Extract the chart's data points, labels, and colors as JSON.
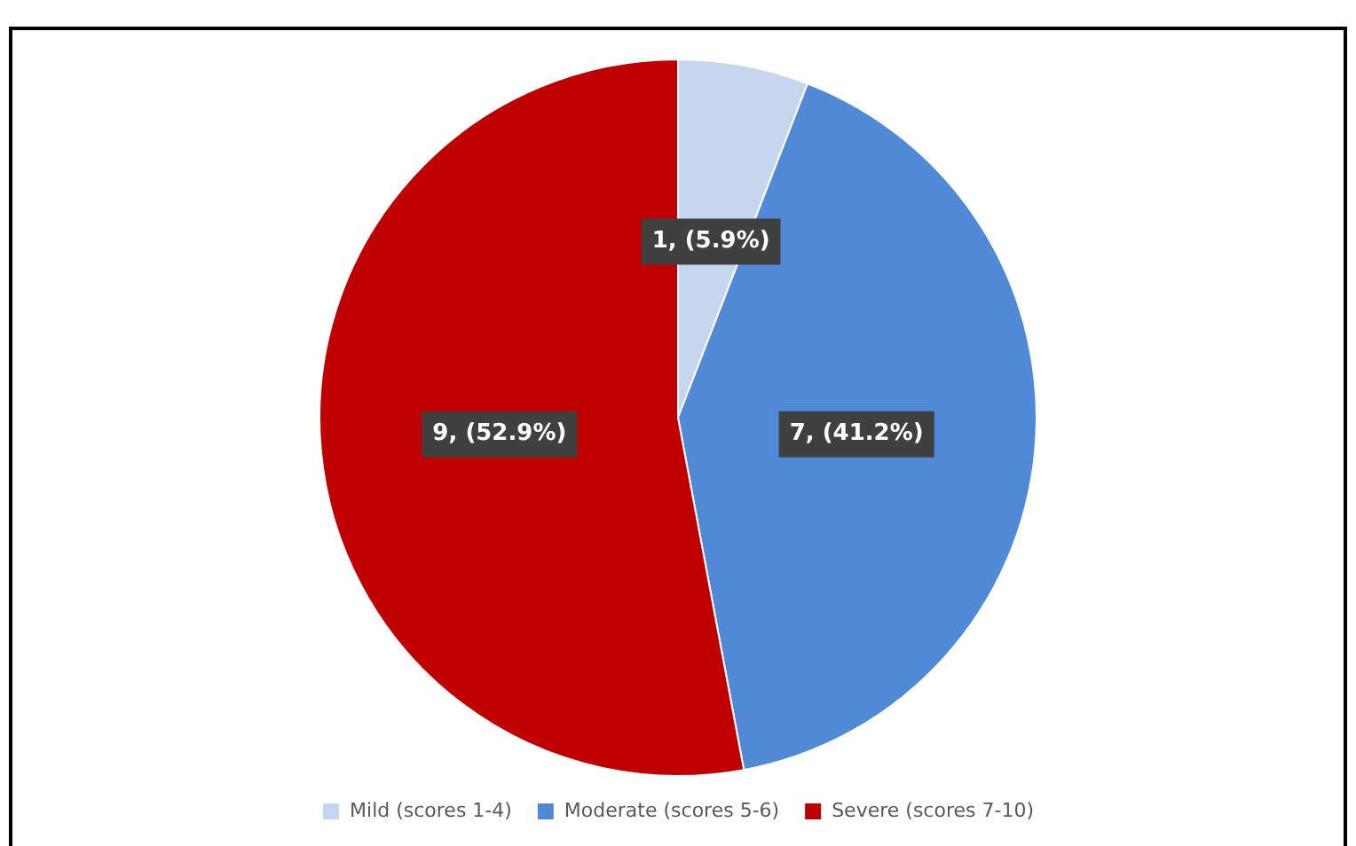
{
  "chart_data": {
    "type": "pie",
    "categories": [
      "Mild (scores 1-4)",
      "Moderate (scores 5-6)",
      "Severe (scores 7-10)"
    ],
    "values": [
      1,
      7,
      9
    ],
    "colors": [
      "#c5d6ee",
      "#5089d6",
      "#c00000"
    ],
    "value_labels": [
      "1, (5.9%)",
      "7, (41.2%)",
      "9, (52.9%)"
    ],
    "legend": "bottom"
  }
}
